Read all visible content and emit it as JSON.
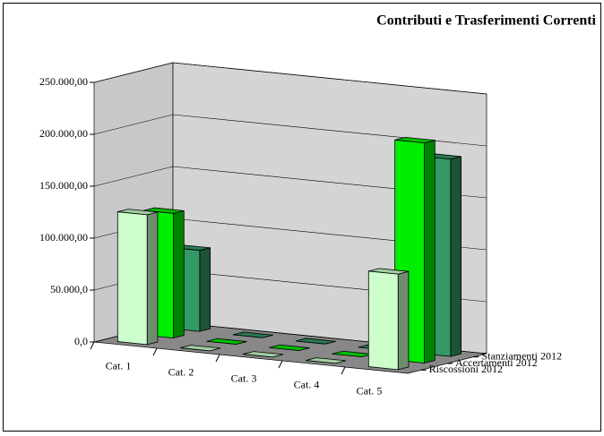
{
  "chart_data": {
    "type": "bar3d",
    "title": "Contributi e Trasferimenti Correnti",
    "categories": [
      "Cat. 1",
      "Cat. 2",
      "Cat. 3",
      "Cat. 4",
      "Cat. 5"
    ],
    "series": [
      {
        "name": "Riscossioni 2012",
        "color": "#ccffcc",
        "values": [
          125000,
          0,
          0,
          0,
          92000
        ]
      },
      {
        "name": "Accertamenti 2012",
        "color": "#00ee00",
        "values": [
          120000,
          0,
          0,
          0,
          212000
        ]
      },
      {
        "name": "Stanziamenti 2012",
        "color": "#339966",
        "values": [
          78000,
          0,
          0,
          0,
          190000
        ]
      }
    ],
    "ylim": [
      0,
      250000
    ],
    "yticks": [
      {
        "value": 0,
        "label": "0,0"
      },
      {
        "value": 50000,
        "label": "50.000,0"
      },
      {
        "value": 100000,
        "label": "100.000,00"
      },
      {
        "value": 150000,
        "label": "150.000,00"
      },
      {
        "value": 200000,
        "label": "200.000,00"
      },
      {
        "value": 250000,
        "label": "250.000,00"
      }
    ],
    "grid": true
  }
}
